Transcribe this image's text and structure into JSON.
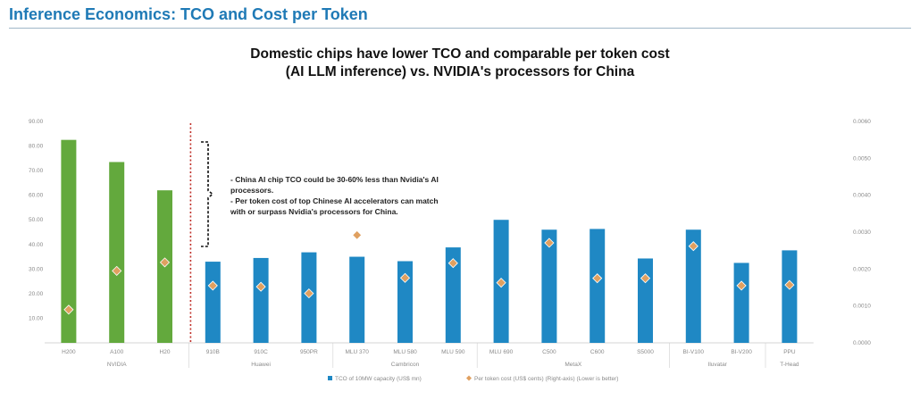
{
  "page": {
    "title": "Inference Economics: TCO and Cost per Token"
  },
  "chart_data": {
    "type": "bar",
    "title": "Domestic chips have lower TCO and comparable per token cost",
    "subtitle": "(AI LLM inference) vs. NVIDIA's processors for China",
    "categories": [
      "H200",
      "A100",
      "H20",
      "910B",
      "910C",
      "950PR",
      "MLU 370",
      "MLU 580",
      "MLU 590",
      "MLU 690",
      "C500",
      "C600",
      "S5000",
      "BI-V100",
      "BI-V200",
      "PPU"
    ],
    "groups": [
      {
        "label": "NVIDIA",
        "count": 3
      },
      {
        "label": "Huawei",
        "count": 3
      },
      {
        "label": "Cambricon",
        "count": 3
      },
      {
        "label": "MetaX",
        "count": 4
      },
      {
        "label": "Iluvatar",
        "count": 2
      },
      {
        "label": "T-Head",
        "count": 1
      }
    ],
    "series": [
      {
        "name": "TCO of 10MW capacity (US$ mn)",
        "axis": "left",
        "kind": "bar",
        "values": [
          82.5,
          73.5,
          62.0,
          33.0,
          34.5,
          36.8,
          35.0,
          33.2,
          38.8,
          50.0,
          46.0,
          46.3,
          34.3,
          46.0,
          32.5,
          37.6
        ]
      },
      {
        "name": "Per token cost (US$ cents) (Right-axis) (Lower is better)",
        "axis": "right",
        "kind": "marker",
        "values": [
          0.0009,
          0.00195,
          0.00218,
          0.00155,
          0.00152,
          0.00134,
          0.00292,
          0.00176,
          0.00216,
          0.00163,
          0.00271,
          0.00175,
          0.00175,
          0.00262,
          0.00155,
          0.00157
        ]
      }
    ],
    "ylim_left": [
      0,
      90
    ],
    "yticks_left": [
      "90.00",
      "80.00",
      "70.00",
      "60.00",
      "50.00",
      "40.00",
      "30.00",
      "20.00",
      "10.00"
    ],
    "ylim_right": [
      0,
      0.006
    ],
    "yticks_right": [
      "0.0060",
      "0.0050",
      "0.0040",
      "0.0030",
      "0.0020",
      "0.0010",
      "0.0000"
    ],
    "colors": {
      "nvidia_bar": "#63a93d",
      "domestic_bar": "#1f88c4",
      "marker": "#e0a060",
      "marker_outline": "#ffffff",
      "divider": "#c0302a"
    },
    "legend_position": "bottom",
    "annotation": {
      "lines": [
        "- China AI chip TCO could be 30-60% less than Nvidia's AI",
        "processors.",
        "- Per token cost of top Chinese AI accelerators can match",
        "with or surpass Nvidia's processors for China."
      ]
    }
  }
}
